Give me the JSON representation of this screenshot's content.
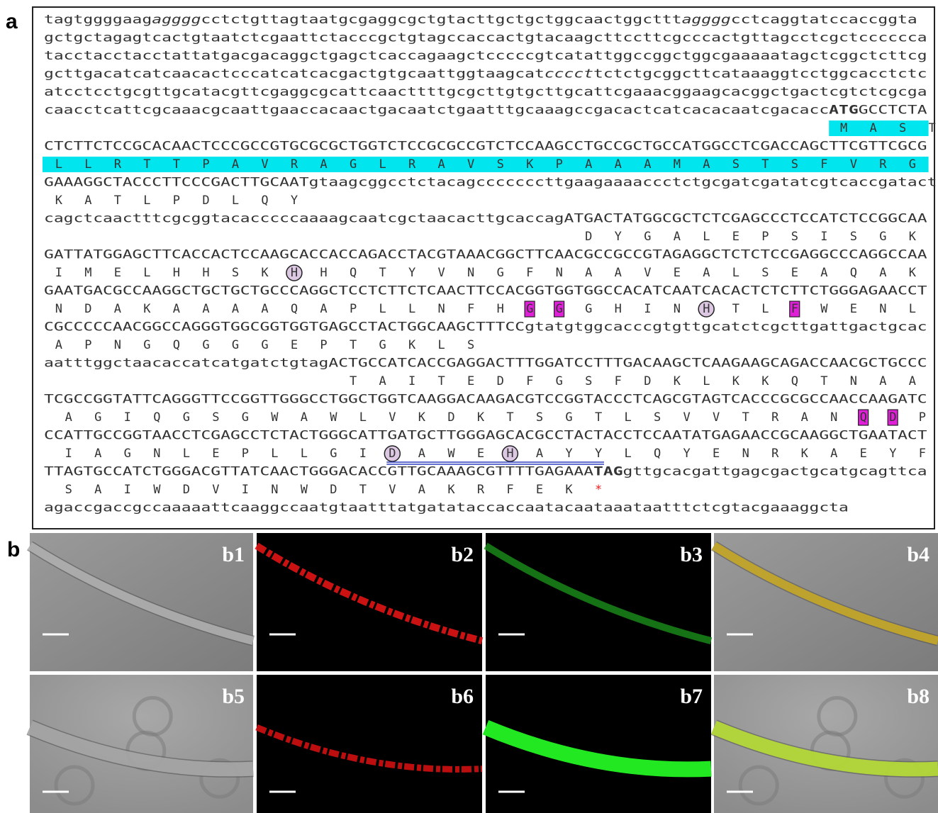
{
  "panel_a": {
    "label": "a",
    "rows": [
      {
        "segments": [
          "tagtggggaag",
          "agggg",
          "cctctgttagtaatgcgaggcgctgtacttgctgctggcaactggcttt",
          "agggg",
          "cctcaggtatccaccggta"
        ]
      },
      {
        "segments": [
          "gctgctagagtcactgtaatctcgaattctacccgctgtagccaccactgtacaagcttccttcgcccactgttagcctcgctcccccca"
        ]
      },
      {
        "segments": [
          "tacctacctacctattatgacgacaggctgagctcaccagaagctcccccgtcatattggccggctggcgaaaaatagctcggctcttcg"
        ]
      },
      {
        "segments": [
          "gcttgacatcatcaacactcccatcatcacgactgtgcaattggtaagcat",
          "cccct",
          "tctctgcggcttcataaaggtcctggcacctctc"
        ]
      },
      {
        "segments": [
          "atcctcctgcgttgcatacgttcgaggcgcattcaacttttgcgcttgtgcttgcattcgaaacggaagcacggctgactcgtctcgcga"
        ]
      },
      {
        "segments": [
          "caacctcattcgcaaacgcaattgaaccacaactgacaatctgaatttgcaaagccgacactcatcacacaatcgacacc",
          "ATG",
          "GCCTCTA"
        ]
      },
      {
        "aa": "MAST"
      },
      {
        "segments": [
          "CTCTTCTCCGCACAACTCCCGCCGTGCGCGCTGGTCTCCGCGCCGTCTCCAAGCCTGCCGCTGCCATGGCCTCGACCAGCTTCGTTCGCG"
        ]
      },
      {
        "aa": "LLRTTPAVRAGLRAVSKPAAAMASTSFVRG"
      },
      {
        "segments": [
          "GAAAGGCTACCCTTCCCGACTTGCAAT",
          "gtaagcggcctctacagcccccccttgaagaaaaccctctgcgatcgatatcgtcaccgatact"
        ]
      },
      {
        "aa": "KATLPDLQY"
      },
      {
        "segments": [
          "cagctcaactttcgcggtacacccccaaaagcaatcgctaacacttgcaccag",
          "ATGACTATGGCGCTCTCGAGCCCTCCATCTCCGGCAA"
        ]
      },
      {
        "aa": "DYGALEPSISGK"
      },
      {
        "segments": [
          "GATTATGGAGCTTCACCACTCCAAGCACCACCAGACCTACGTAAACGGCTTCAACGCCGCCGTAGAGGCTCTCTCCGAGGCCCAGGCCAA"
        ]
      },
      {
        "aa": "IMELHHSKHHQTYVNGFNAAVEALSEAQAK"
      },
      {
        "segments": [
          "GAATGACGCCAAGGCTGCTGCTGCCCAGGCTCCTCTTCTCAACTTCCACGGTGGTGGCCACATCAATCACACTCTCTTCTGGGAGAACCT"
        ]
      },
      {
        "aa": "NDAKAAAAQAPLLNFHGGGHINHTLFWENL"
      },
      {
        "segments": [
          "CGCCCCCAACGGCCAGGGTGGCGGTGGTGAGCCTACTGGCAAGCTTTCC",
          "gtatgtggcacccgtgttgcatctcgcttgattgactgcac"
        ]
      },
      {
        "aa": "APNGQGGGEPTGKLS"
      },
      {
        "segments": [
          "aatttggctaacaccatcatgatctgtag",
          "ACTGCCATCACCGAGGACTTTGGATCCTTTGACAAGCTCAAGAAGCAGACCAACGCTGCCC"
        ]
      },
      {
        "aa": "TAITEDFGSFDKLKKQTNAAL"
      },
      {
        "segments": [
          "TCGCCGGTATTCAGGGTTCCGGTTGGGCCTGGCTGGTCAAGGACAAGACGTCCGGTACCCTCAGCGTAGTCACCCGCGCCAACCAAGATC"
        ]
      },
      {
        "aa": "AGIQGSGWAWLVKDKTSGTLSVVTRANQDP"
      },
      {
        "segments": [
          "CCATTGCCGGTAACCTCGAGCCTCTACTGGGCATTGATGCTTGGGAGCACGCCTACTACCTCCAATATGAGAACCGCAAGGCTGAATACT"
        ]
      },
      {
        "aa": "IAGNLEPLLGIDAWEHAYYLQYENRKAEYF"
      },
      {
        "segments": [
          "TTAGTGCCATCTGGGACGTTATCAACTGGGACACCGTTGCAAAGCGTTTTGAGAAA",
          "TAG",
          "gttgcacgattgagcgactgcatgcagttca"
        ]
      },
      {
        "aa": "SAIWDVINWDTVAKRFEK*"
      },
      {
        "segments": [
          "agaccgaccgccaaaaattcaaggccaatgtaatttatgatataccaccaatac",
          "aataaa",
          "taatttctcgtacgaaaggcta"
        ]
      }
    ]
  },
  "panel_b": {
    "label": "b",
    "images": [
      "b1",
      "b2",
      "b3",
      "b4",
      "b5",
      "b6",
      "b7",
      "b8"
    ]
  }
}
